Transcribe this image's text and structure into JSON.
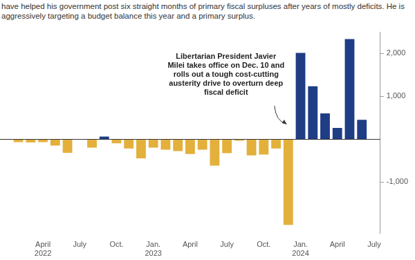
{
  "chart_data": {
    "type": "bar",
    "subtitle": "have helped his government post six straight months of primary fiscal surpluses after years of mostly deficits. He is aggressively targeting a budget balance this year and a primary surplus.",
    "annotation": "Libertarian President Javier Milei takes office on Dec. 10 and rolls out a tough cost-cutting austerity drive to overturn deep fiscal deficit",
    "categories": [
      null,
      null,
      null,
      "April 2022",
      null,
      null,
      "July",
      null,
      null,
      "Oct.",
      null,
      null,
      "Jan. 2023",
      null,
      null,
      "April",
      null,
      null,
      "July",
      null,
      null,
      "Oct.",
      null,
      null,
      "Jan. 2024",
      null,
      null,
      "April",
      null,
      null,
      "July"
    ],
    "values": [
      -20,
      -70,
      -80,
      -70,
      -150,
      -320,
      -5,
      -200,
      60,
      -100,
      -220,
      -450,
      -200,
      -250,
      -280,
      -350,
      -250,
      -620,
      -330,
      -40,
      -380,
      -360,
      -220,
      -2000,
      2010,
      1230,
      600,
      260,
      2330,
      450,
      null
    ],
    "colors": [
      "#e3b03c",
      "#e3b03c",
      "#e3b03c",
      "#e3b03c",
      "#e3b03c",
      "#e3b03c",
      "#e3b03c",
      "#e3b03c",
      "#1f3d85",
      "#e3b03c",
      "#e3b03c",
      "#e3b03c",
      "#e3b03c",
      "#e3b03c",
      "#e3b03c",
      "#e3b03c",
      "#e3b03c",
      "#e3b03c",
      "#e3b03c",
      "#e3b03c",
      "#e3b03c",
      "#e3b03c",
      "#e3b03c",
      "#e3b03c",
      "#1f3d85",
      "#1f3d85",
      "#1f3d85",
      "#1f3d85",
      "#1f3d85",
      "#1f3d85",
      "#1f3d85"
    ],
    "ylim": [
      -2200,
      2500
    ],
    "yticks": [
      {
        "value": -1000,
        "label": "-1,000"
      },
      {
        "value": 1000,
        "label": "1,000"
      },
      {
        "value": 2000,
        "label": "2,000"
      }
    ],
    "grid": false
  }
}
